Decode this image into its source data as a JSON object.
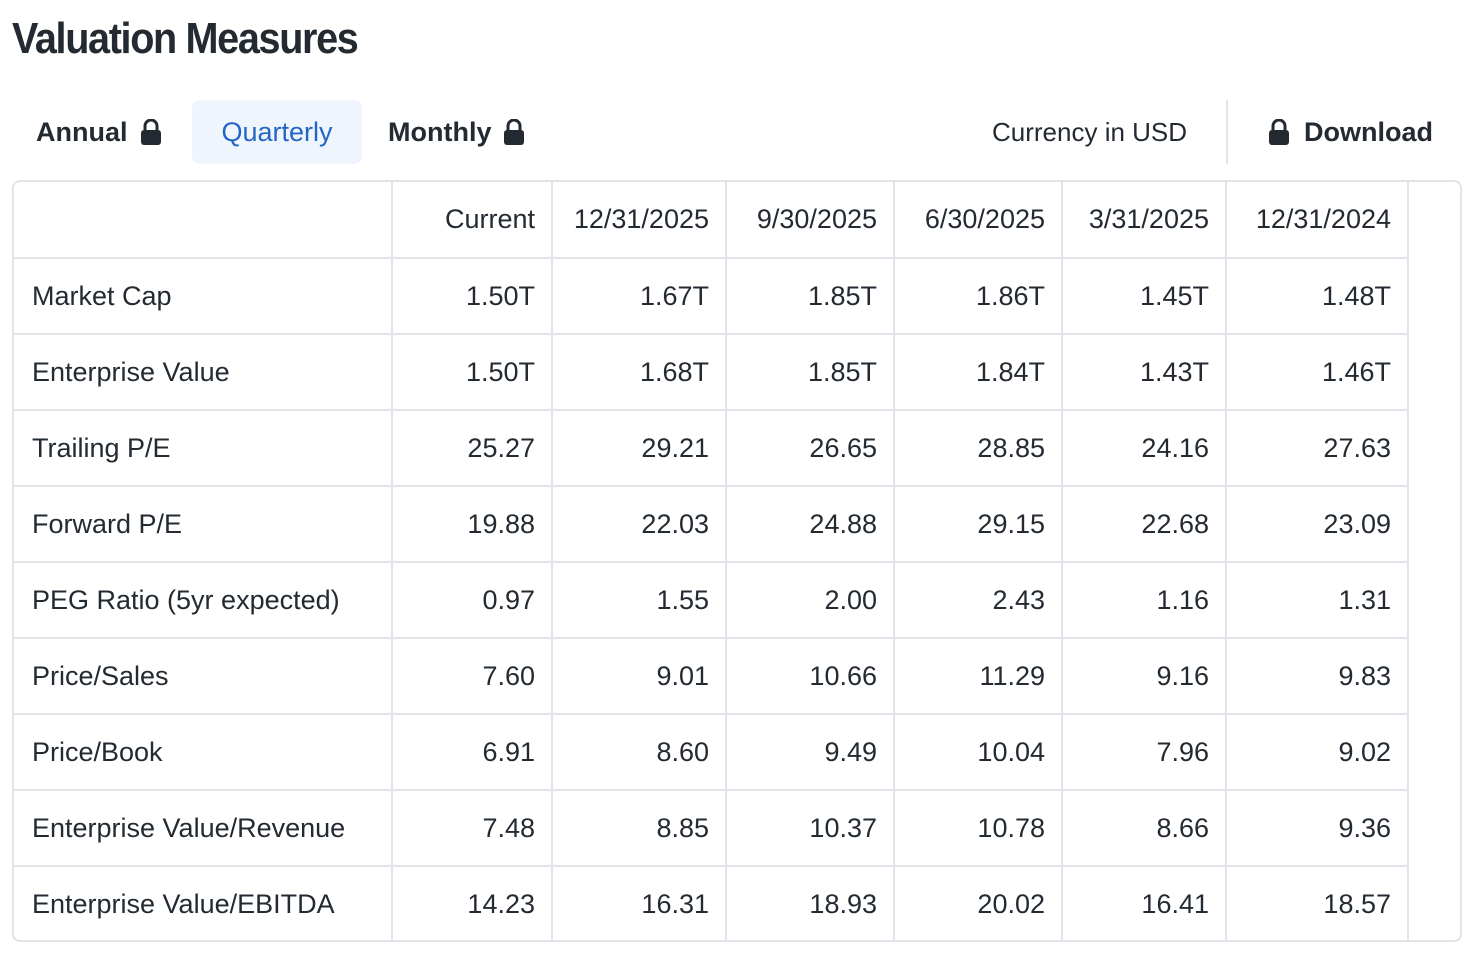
{
  "title": "Valuation Measures",
  "tabs": {
    "annual": "Annual",
    "quarterly": "Quarterly",
    "monthly": "Monthly",
    "active": "Quarterly"
  },
  "currency_label": "Currency in USD",
  "download_label": "Download",
  "icons": {
    "lock": "lock-icon"
  },
  "colors": {
    "active_tab_text": "#2566c4",
    "active_tab_bg": "#eef5fc",
    "text": "#232a31",
    "border": "#e0e4e9"
  },
  "table": {
    "headers": [
      "",
      "Current",
      "12/31/2025",
      "9/30/2025",
      "6/30/2025",
      "3/31/2025",
      "12/31/2024"
    ],
    "rows": [
      {
        "label": "Market Cap",
        "values": [
          "1.50T",
          "1.67T",
          "1.85T",
          "1.86T",
          "1.45T",
          "1.48T"
        ]
      },
      {
        "label": "Enterprise Value",
        "values": [
          "1.50T",
          "1.68T",
          "1.85T",
          "1.84T",
          "1.43T",
          "1.46T"
        ]
      },
      {
        "label": "Trailing P/E",
        "values": [
          "25.27",
          "29.21",
          "26.65",
          "28.85",
          "24.16",
          "27.63"
        ]
      },
      {
        "label": "Forward P/E",
        "values": [
          "19.88",
          "22.03",
          "24.88",
          "29.15",
          "22.68",
          "23.09"
        ]
      },
      {
        "label": "PEG Ratio (5yr expected)",
        "values": [
          "0.97",
          "1.55",
          "2.00",
          "2.43",
          "1.16",
          "1.31"
        ]
      },
      {
        "label": "Price/Sales",
        "values": [
          "7.60",
          "9.01",
          "10.66",
          "11.29",
          "9.16",
          "9.83"
        ]
      },
      {
        "label": "Price/Book",
        "values": [
          "6.91",
          "8.60",
          "9.49",
          "10.04",
          "7.96",
          "9.02"
        ]
      },
      {
        "label": "Enterprise Value/Revenue",
        "values": [
          "7.48",
          "8.85",
          "10.37",
          "10.78",
          "8.66",
          "9.36"
        ]
      },
      {
        "label": "Enterprise Value/EBITDA",
        "values": [
          "14.23",
          "16.31",
          "18.93",
          "20.02",
          "16.41",
          "18.57"
        ]
      }
    ]
  }
}
